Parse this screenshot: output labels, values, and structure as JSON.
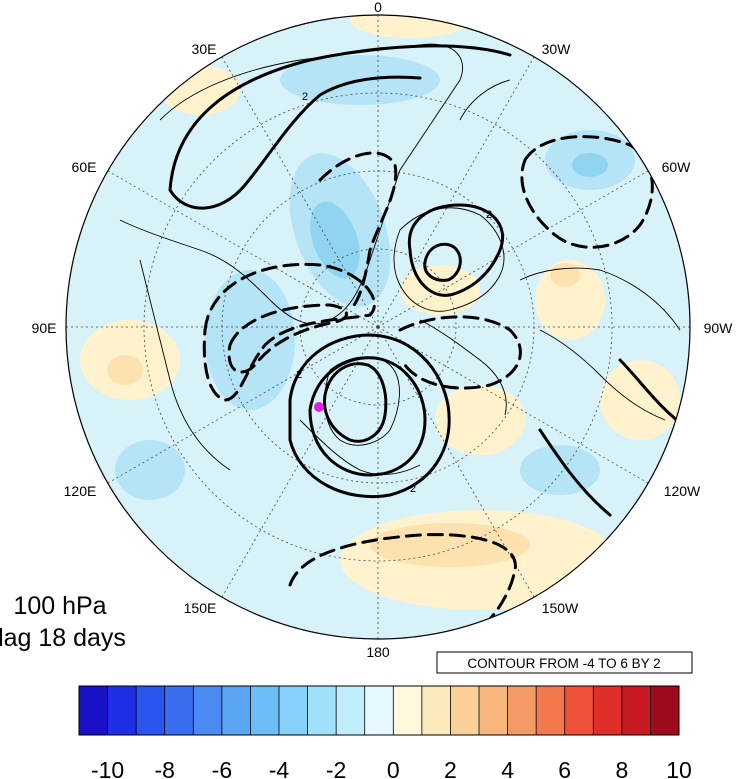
{
  "map": {
    "projection": "north-polar-stereographic",
    "lon_labels": [
      {
        "text": "0",
        "lon": 0
      },
      {
        "text": "30W",
        "lon": -30
      },
      {
        "text": "60W",
        "lon": -60
      },
      {
        "text": "90W",
        "lon": -90
      },
      {
        "text": "120W",
        "lon": -120
      },
      {
        "text": "150W",
        "lon": -150
      },
      {
        "text": "180",
        "lon": 180
      },
      {
        "text": "150E",
        "lon": 150
      },
      {
        "text": "120E",
        "lon": 120
      },
      {
        "text": "90E",
        "lon": 90
      },
      {
        "text": "60E",
        "lon": 60
      },
      {
        "text": "30E",
        "lon": 30
      }
    ],
    "level_label": "100 hPa",
    "lag_label": "lag 18 days",
    "contour_info": "CONTOUR FROM -4 TO 6 BY 2",
    "contour_value_label": "2",
    "marker_color": "#e020e0"
  },
  "colorbar": {
    "colors": [
      "#1a10c8",
      "#1f2fe6",
      "#2a55ee",
      "#3a6ef0",
      "#4a8af2",
      "#5aa4f4",
      "#6ebcf6",
      "#84d0f8",
      "#a0e0fa",
      "#c0eefc",
      "#e4f8fe",
      "#fff8dc",
      "#fdeabc",
      "#f8d098",
      "#f6b67e",
      "#f49a66",
      "#f2784e",
      "#ee5038",
      "#e02e2a",
      "#c81a22",
      "#9c0a1c"
    ],
    "tick_labels": [
      "-10",
      "-8",
      "-6",
      "-4",
      "-2",
      "0",
      "2",
      "4",
      "6",
      "8",
      "10"
    ]
  }
}
